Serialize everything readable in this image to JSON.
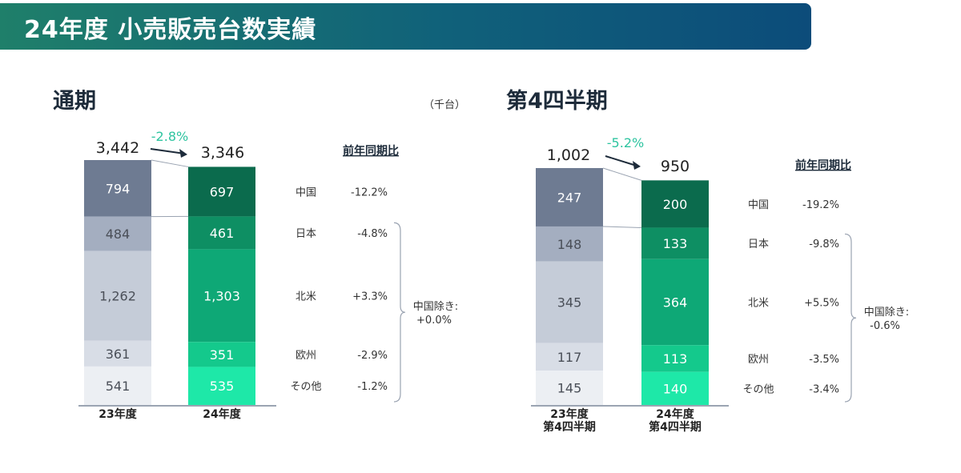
{
  "header": {
    "title": "24年度 小売販売台数実績"
  },
  "sections": {
    "annual": {
      "title": "通期",
      "unit": "（千台）"
    },
    "q4": {
      "title": "第4四半期"
    }
  },
  "chart_data": [
    {
      "type": "bar",
      "stacked": true,
      "title": "通期",
      "unit": "（千台）",
      "categories": [
        "23年度",
        "24年度"
      ],
      "segments": [
        "中国",
        "日本",
        "北米",
        "欧州",
        "その他"
      ],
      "series": [
        {
          "name": "中国",
          "values": [
            794,
            697
          ],
          "labels": [
            "794",
            "697"
          ],
          "yoy": "-12.2%"
        },
        {
          "name": "日本",
          "values": [
            484,
            461
          ],
          "labels": [
            "484",
            "461"
          ],
          "yoy": "-4.8%"
        },
        {
          "name": "北米",
          "values": [
            1262,
            1303
          ],
          "labels": [
            "1,262",
            "1,303"
          ],
          "yoy": "+3.3%"
        },
        {
          "name": "欧州",
          "values": [
            361,
            351
          ],
          "labels": [
            "361",
            "351"
          ],
          "yoy": "-2.9%"
        },
        {
          "name": "その他",
          "values": [
            541,
            535
          ],
          "labels": [
            "541",
            "535"
          ],
          "yoy": "-1.2%"
        }
      ],
      "totals": [
        3442,
        3346
      ],
      "total_labels": [
        "3,442",
        "3,346"
      ],
      "change": "-2.8%",
      "yoy_header": "前年同期比",
      "bracket_label": [
        "中国除き:",
        "+0.0%"
      ],
      "colors": {
        "prev": [
          "#6e7b92",
          "#a4aec0",
          "#c5ccd8",
          "#d8dde6",
          "#eceff3"
        ],
        "curr": [
          "#0b6b4d",
          "#0e8f63",
          "#0ea876",
          "#14c98c",
          "#1ee8a8"
        ],
        "change": "#2ec4a0"
      }
    },
    {
      "type": "bar",
      "stacked": true,
      "title": "第4四半期",
      "categories": [
        "23年度\n第4四半期",
        "24年度\n第4四半期"
      ],
      "segments": [
        "中国",
        "日本",
        "北米",
        "欧州",
        "その他"
      ],
      "series": [
        {
          "name": "中国",
          "values": [
            247,
            200
          ],
          "labels": [
            "247",
            "200"
          ],
          "yoy": "-19.2%"
        },
        {
          "name": "日本",
          "values": [
            148,
            133
          ],
          "labels": [
            "148",
            "133"
          ],
          "yoy": "-9.8%"
        },
        {
          "name": "北米",
          "values": [
            345,
            364
          ],
          "labels": [
            "345",
            "364"
          ],
          "yoy": "+5.5%"
        },
        {
          "name": "欧州",
          "values": [
            117,
            113
          ],
          "labels": [
            "117",
            "113"
          ],
          "yoy": "-3.5%"
        },
        {
          "name": "その他",
          "values": [
            145,
            140
          ],
          "labels": [
            "145",
            "140"
          ],
          "yoy": "-3.4%"
        }
      ],
      "totals": [
        1002,
        950
      ],
      "total_labels": [
        "1,002",
        "950"
      ],
      "change": "-5.2%",
      "yoy_header": "前年同期比",
      "bracket_label": [
        "中国除き:",
        "-0.6%"
      ],
      "colors": {
        "prev": [
          "#6e7b92",
          "#a4aec0",
          "#c5ccd8",
          "#d8dde6",
          "#eceff3"
        ],
        "curr": [
          "#0b6b4d",
          "#0e8f63",
          "#0ea876",
          "#14c98c",
          "#1ee8a8"
        ],
        "change": "#2ec4a0"
      }
    }
  ]
}
